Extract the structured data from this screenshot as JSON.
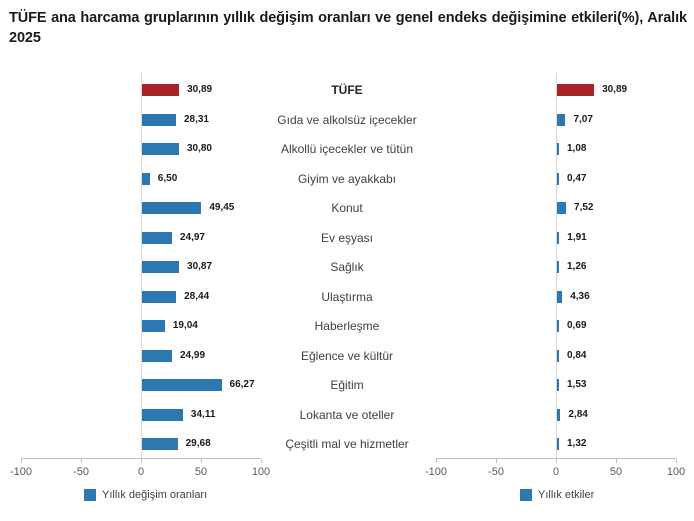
{
  "title": "TÜFE ana harcama gruplarının yıllık değişim oranları ve genel endeks değişimine etkileri(%), Aralık 2025",
  "colors": {
    "bar_blue": "#2e78b1",
    "bar_red": "#a82328",
    "zero_gridline": "#d9d9d9",
    "axis_line": "#c0c0c0",
    "tick_text": "#595959",
    "value_text": "#1a1a1a",
    "category_text": "#404040"
  },
  "categories": [
    "TÜFE",
    "Gıda ve alkolsüz içecekler",
    "Alkollü içecekler ve tütün",
    "Giyim ve ayakkabı",
    "Konut",
    "Ev eşyası",
    "Sağlık",
    "Ulaştırma",
    "Haberleşme",
    "Eğlence ve kültür",
    "Eğitim",
    "Lokanta ve oteller",
    "Çeşitli mal ve hizmetler"
  ],
  "chart_data": [
    {
      "type": "bar",
      "orientation": "horizontal",
      "legend": "Yıllık değişim oranları",
      "xlim": [
        -100,
        100
      ],
      "tick_values": [
        -100,
        -50,
        0,
        50,
        100
      ],
      "tick_labels": [
        "-100",
        "-50",
        "0",
        "50",
        "100"
      ],
      "highlight_index": 0,
      "values": [
        30.89,
        28.31,
        30.8,
        6.5,
        49.45,
        24.97,
        30.87,
        28.44,
        19.04,
        24.99,
        66.27,
        34.11,
        29.68
      ],
      "value_labels": [
        "30,89",
        "28,31",
        "30,80",
        "6,50",
        "49,45",
        "24,97",
        "30,87",
        "28,44",
        "19,04",
        "24,99",
        "66,27",
        "34,11",
        "29,68"
      ]
    },
    {
      "type": "bar",
      "orientation": "horizontal",
      "legend": "Yıllık etkiler",
      "xlim": [
        -100,
        100
      ],
      "tick_values": [
        -100,
        -50,
        0,
        50,
        100
      ],
      "tick_labels": [
        "-100",
        "-50",
        "0",
        "50",
        "100"
      ],
      "highlight_index": 0,
      "values": [
        30.89,
        7.07,
        1.08,
        0.47,
        7.52,
        1.91,
        1.26,
        4.36,
        0.69,
        0.84,
        1.53,
        2.84,
        1.32
      ],
      "value_labels": [
        "30,89",
        "7,07",
        "1,08",
        "0,47",
        "7,52",
        "1,91",
        "1,26",
        "4,36",
        "0,69",
        "0,84",
        "1,53",
        "2,84",
        "1,32"
      ]
    }
  ]
}
